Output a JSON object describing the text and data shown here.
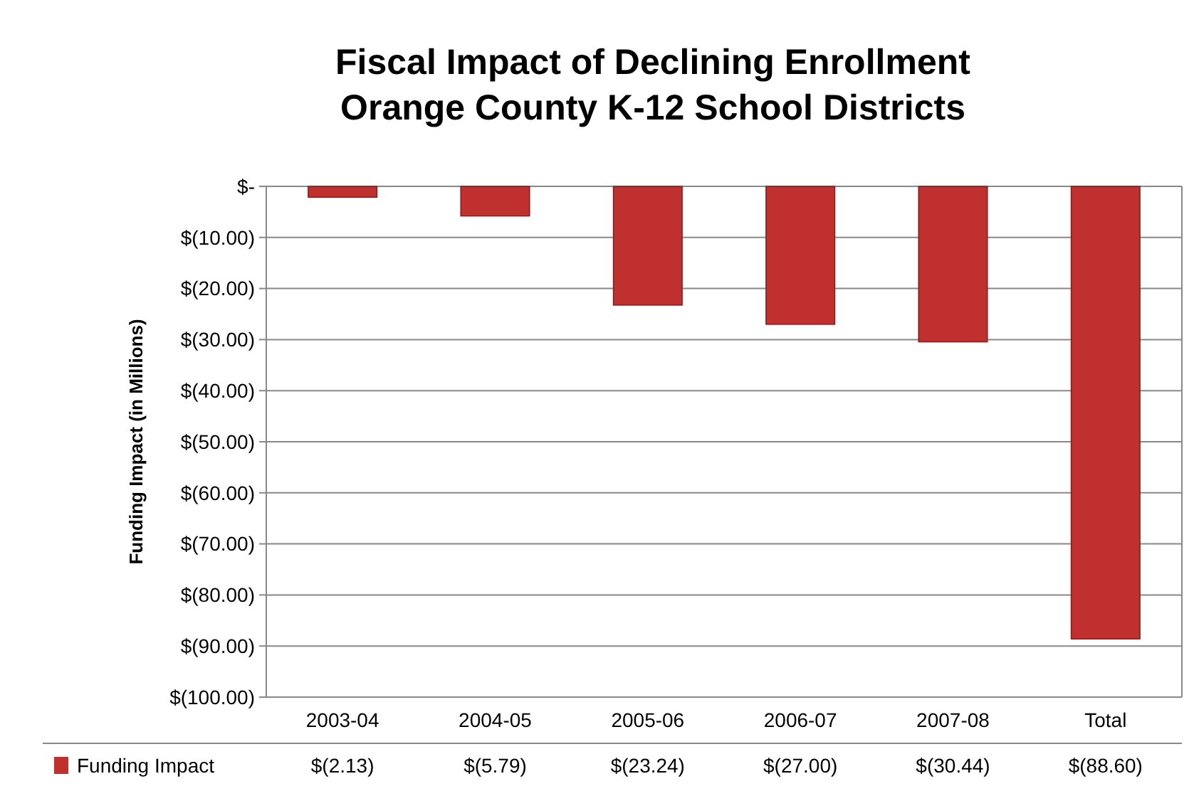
{
  "chart_data": {
    "type": "bar",
    "title": "Fiscal Impact of Declining Enrollment\nOrange County K-12 School Districts",
    "ylabel": "Funding Impact (in Millions)",
    "categories": [
      "2003-04",
      "2004-05",
      "2005-06",
      "2006-07",
      "2007-08",
      "Total"
    ],
    "series": [
      {
        "name": "Funding Impact",
        "color": "#c0302f",
        "values": [
          -2.13,
          -5.79,
          -23.24,
          -27.0,
          -30.44,
          -88.6
        ],
        "value_labels": [
          "$(2.13)",
          "$(5.79)",
          "$(23.24)",
          "$(27.00)",
          "$(30.44)",
          "$(88.60)"
        ]
      }
    ],
    "ylim": [
      -100,
      0
    ],
    "yticks": [
      {
        "value": 0,
        "label": "$-"
      },
      {
        "value": -10,
        "label": "$(10.00)"
      },
      {
        "value": -20,
        "label": "$(20.00)"
      },
      {
        "value": -30,
        "label": "$(30.00)"
      },
      {
        "value": -40,
        "label": "$(40.00)"
      },
      {
        "value": -50,
        "label": "$(50.00)"
      },
      {
        "value": -60,
        "label": "$(60.00)"
      },
      {
        "value": -70,
        "label": "$(70.00)"
      },
      {
        "value": -80,
        "label": "$(80.00)"
      },
      {
        "value": -90,
        "label": "$(90.00)"
      },
      {
        "value": -100,
        "label": "$(100.00)"
      }
    ],
    "grid": "y",
    "legend": "bottom"
  }
}
